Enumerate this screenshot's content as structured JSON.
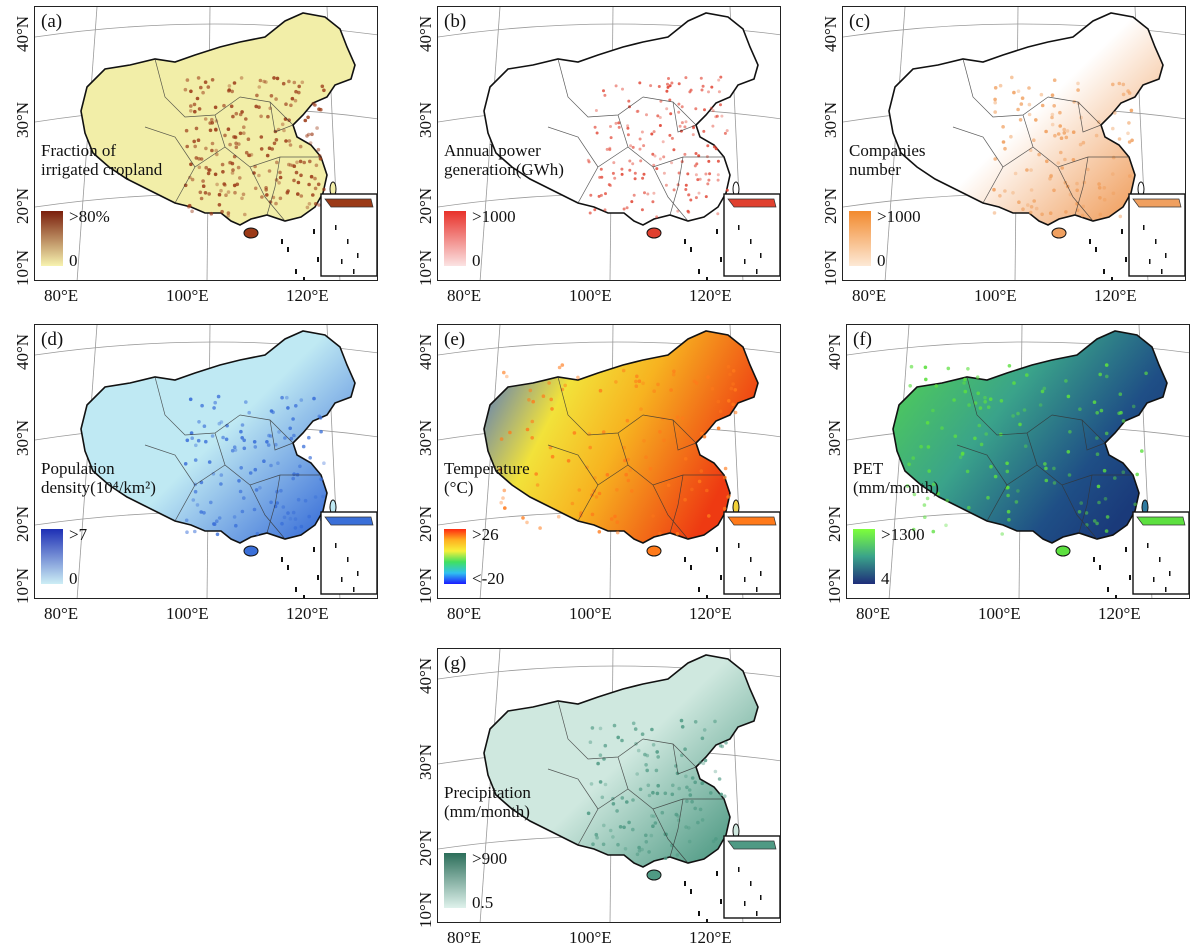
{
  "lat_labels": [
    "40°N",
    "30°N",
    "20°N",
    "10°N"
  ],
  "lon_labels": [
    "80°E",
    "100°E",
    "120°E"
  ],
  "panels": [
    {
      "id": "a",
      "label": "(a)",
      "title_line1": "Fraction of",
      "title_line2": "irrigated cropland",
      "max": ">80%",
      "min": "0",
      "colors": {
        "low": "#f7f3b0",
        "high": "#7a1e0c",
        "base": "#f2eea8",
        "dots": "#9b3a17"
      },
      "pattern": "cropland"
    },
    {
      "id": "b",
      "label": "(b)",
      "title_line1": "Annual power",
      "title_line2": "generation(GWh)",
      "max": ">1000",
      "min": "0",
      "colors": {
        "low": "#fbe3e3",
        "high": "#e8312a",
        "base": "#ffffff",
        "dots": "#e0402f"
      },
      "pattern": "points"
    },
    {
      "id": "c",
      "label": "(c)",
      "title_line1": "Companies",
      "title_line2": "number",
      "max": ">1000",
      "min": "0",
      "colors": {
        "low": "#fde9d6",
        "high": "#f28a2e",
        "base": "#ffffff",
        "dots": "#f0a060"
      },
      "pattern": "east"
    },
    {
      "id": "d",
      "label": "(d)",
      "title_line1": "Population",
      "title_line2": "density(10⁴/km²)",
      "max": ">7",
      "min": "0",
      "colors": {
        "low": "#cdeef5",
        "high": "#1d2fb5",
        "base": "#bfe9f3",
        "dots": "#3a6fd8"
      },
      "pattern": "east"
    },
    {
      "id": "e",
      "label": "(e)",
      "title_line1": "Temperature",
      "title_line2": "(°C)",
      "max": ">26",
      "min": "<-20",
      "colors": {
        "low": "#1a1aff",
        "high": "#ff2a10",
        "base": "#f3d23a",
        "dots": "#ff7a1a"
      },
      "pattern": "temp"
    },
    {
      "id": "f",
      "label": "(f)",
      "title_line1": "PET",
      "title_line2": "(mm/month)",
      "max": ">1300",
      "min": "4",
      "colors": {
        "low": "#1f2d7a",
        "high": "#7dff3a",
        "base": "#2f7aa0",
        "dots": "#5de040"
      },
      "pattern": "pet"
    },
    {
      "id": "g",
      "label": "(g)",
      "title_line1": "Precipitation",
      "title_line2": "(mm/month)",
      "max": ">900",
      "min": "0.5",
      "colors": {
        "low": "#dff2ec",
        "high": "#2c6e5a",
        "base": "#cfe8df",
        "dots": "#4f9a84"
      },
      "pattern": "east"
    }
  ]
}
